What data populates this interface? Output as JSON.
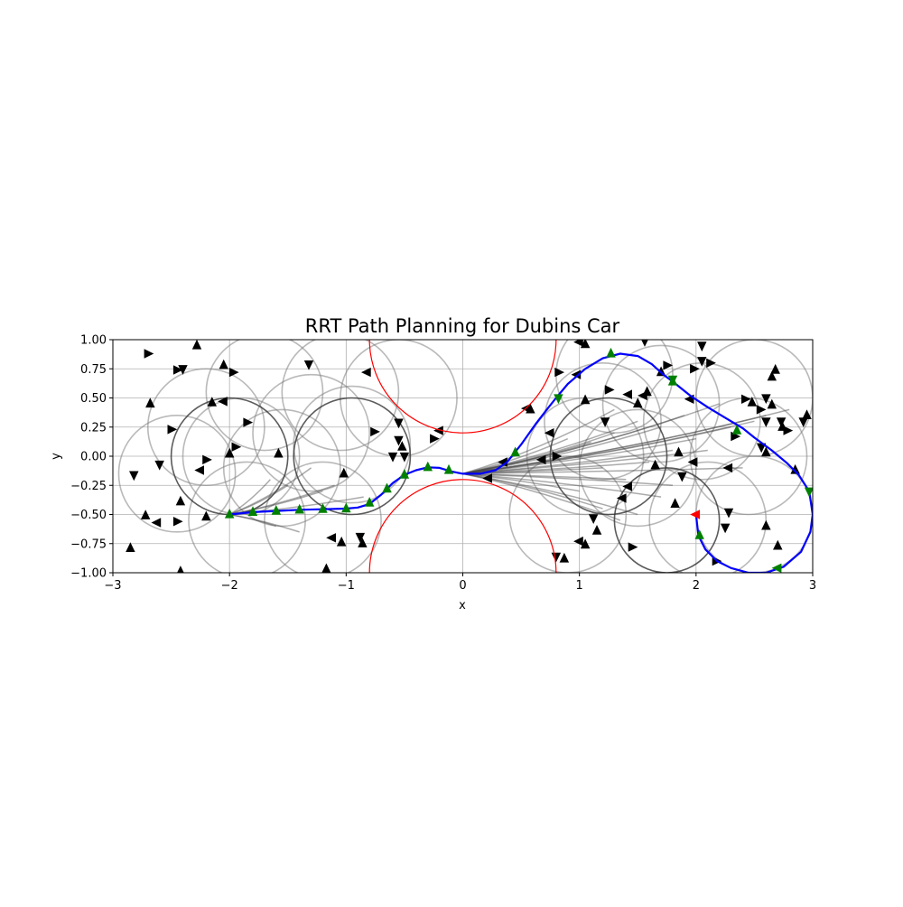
{
  "chart_data": {
    "type": "line",
    "title": "RRT Path Planning for Dubins Car",
    "xlabel": "x",
    "ylabel": "y",
    "xlim": [
      -3,
      3
    ],
    "ylim": [
      -1,
      1
    ],
    "grid": true,
    "xticks": [
      -3,
      -2,
      -1,
      0,
      1,
      2,
      3
    ],
    "xtick_labels": [
      "−3",
      "−2",
      "−1",
      "0",
      "1",
      "2",
      "3"
    ],
    "yticks": [
      -1.0,
      -0.75,
      -0.5,
      -0.25,
      0.0,
      0.25,
      0.5,
      0.75,
      1.0
    ],
    "ytick_labels": [
      "−1.00",
      "−0.75",
      "−0.50",
      "−0.25",
      "0.00",
      "0.25",
      "0.50",
      "0.75",
      "1.00"
    ],
    "obstacles": [
      {
        "cx": 0,
        "cy": 1.0,
        "r": 0.8
      },
      {
        "cx": 0,
        "cy": -1.0,
        "r": 0.8
      }
    ],
    "colors": {
      "path": "#0000ff",
      "obstacle": "#ff0000",
      "tree_edge": "#808080",
      "tree_node": "#000000",
      "path_node": "#008000",
      "goal": "#ff0000"
    },
    "start": {
      "x": -2.0,
      "y": -0.5
    },
    "goal": {
      "x": 2.0,
      "y": -0.5,
      "heading_deg": 180
    },
    "path": [
      [
        -2.0,
        -0.5
      ],
      [
        -1.8,
        -0.48
      ],
      [
        -1.6,
        -0.47
      ],
      [
        -1.4,
        -0.46
      ],
      [
        -1.2,
        -0.455
      ],
      [
        -1.0,
        -0.45
      ],
      [
        -0.9,
        -0.44
      ],
      [
        -0.8,
        -0.41
      ],
      [
        -0.7,
        -0.33
      ],
      [
        -0.6,
        -0.23
      ],
      [
        -0.5,
        -0.16
      ],
      [
        -0.4,
        -0.12
      ],
      [
        -0.3,
        -0.095
      ],
      [
        -0.2,
        -0.1
      ],
      [
        -0.1,
        -0.13
      ],
      [
        0.0,
        -0.15
      ],
      [
        0.15,
        -0.15
      ],
      [
        0.28,
        -0.12
      ],
      [
        0.38,
        -0.05
      ],
      [
        0.5,
        0.1
      ],
      [
        0.62,
        0.27
      ],
      [
        0.72,
        0.4
      ],
      [
        0.8,
        0.5
      ],
      [
        0.9,
        0.62
      ],
      [
        1.05,
        0.75
      ],
      [
        1.2,
        0.84
      ],
      [
        1.35,
        0.88
      ],
      [
        1.5,
        0.86
      ],
      [
        1.62,
        0.79
      ],
      [
        1.72,
        0.7
      ],
      [
        1.8,
        0.64
      ],
      [
        1.95,
        0.52
      ],
      [
        2.1,
        0.42
      ],
      [
        2.25,
        0.33
      ],
      [
        2.4,
        0.24
      ],
      [
        2.5,
        0.16
      ],
      [
        2.65,
        0.05
      ],
      [
        2.78,
        -0.06
      ],
      [
        2.88,
        -0.16
      ],
      [
        2.97,
        -0.3
      ],
      [
        3.0,
        -0.5
      ],
      [
        2.98,
        -0.65
      ],
      [
        2.9,
        -0.82
      ],
      [
        2.75,
        -0.95
      ],
      [
        2.6,
        -1.0
      ],
      [
        2.45,
        -1.0
      ],
      [
        2.3,
        -0.96
      ],
      [
        2.18,
        -0.9
      ],
      [
        2.08,
        -0.8
      ],
      [
        2.02,
        -0.68
      ],
      [
        2.0,
        -0.5
      ]
    ],
    "path_markers": [
      {
        "x": -2.0,
        "y": -0.5,
        "heading_deg": 90
      },
      {
        "x": -1.8,
        "y": -0.48,
        "heading_deg": 90
      },
      {
        "x": -1.6,
        "y": -0.47,
        "heading_deg": 90
      },
      {
        "x": -1.4,
        "y": -0.46,
        "heading_deg": 90
      },
      {
        "x": -1.2,
        "y": -0.455,
        "heading_deg": 90
      },
      {
        "x": -1.0,
        "y": -0.45,
        "heading_deg": 90
      },
      {
        "x": -0.8,
        "y": -0.4,
        "heading_deg": 90
      },
      {
        "x": -0.65,
        "y": -0.28,
        "heading_deg": 90
      },
      {
        "x": -0.5,
        "y": -0.16,
        "heading_deg": 90
      },
      {
        "x": -0.3,
        "y": -0.095,
        "heading_deg": 90
      },
      {
        "x": -0.12,
        "y": -0.12,
        "heading_deg": 90
      },
      {
        "x": 0.45,
        "y": 0.03,
        "heading_deg": 90
      },
      {
        "x": 0.82,
        "y": 0.5,
        "heading_deg": -90
      },
      {
        "x": 1.27,
        "y": 0.88,
        "heading_deg": 90
      },
      {
        "x": 1.8,
        "y": 0.64,
        "heading_deg": 90
      },
      {
        "x": 1.8,
        "y": 0.66,
        "heading_deg": -90
      },
      {
        "x": 2.35,
        "y": 0.22,
        "heading_deg": 90
      },
      {
        "x": 2.97,
        "y": -0.3,
        "heading_deg": -90
      },
      {
        "x": 2.7,
        "y": -0.96,
        "heading_deg": 180
      },
      {
        "x": 2.03,
        "y": -0.68,
        "heading_deg": 90
      }
    ],
    "tree_nodes": [
      {
        "x": -2.7,
        "y": 0.88,
        "heading_deg": 0
      },
      {
        "x": -2.45,
        "y": 0.74,
        "heading_deg": 0
      },
      {
        "x": -2.4,
        "y": 0.75,
        "heading_deg": -90
      },
      {
        "x": -2.28,
        "y": 0.95,
        "heading_deg": 90
      },
      {
        "x": -2.05,
        "y": 0.78,
        "heading_deg": 90
      },
      {
        "x": -1.97,
        "y": 0.72,
        "heading_deg": 0
      },
      {
        "x": -1.32,
        "y": 0.79,
        "heading_deg": -90
      },
      {
        "x": -0.82,
        "y": 0.72,
        "heading_deg": 180
      },
      {
        "x": -2.68,
        "y": 0.45,
        "heading_deg": 90
      },
      {
        "x": -2.15,
        "y": 0.46,
        "heading_deg": 90
      },
      {
        "x": -2.05,
        "y": 0.47,
        "heading_deg": 180
      },
      {
        "x": -2.5,
        "y": 0.23,
        "heading_deg": 0
      },
      {
        "x": -1.85,
        "y": 0.29,
        "heading_deg": 0
      },
      {
        "x": -0.55,
        "y": 0.29,
        "heading_deg": -90
      },
      {
        "x": -0.2,
        "y": 0.22,
        "heading_deg": 180
      },
      {
        "x": -0.25,
        "y": 0.15,
        "heading_deg": 0
      },
      {
        "x": -0.76,
        "y": 0.21,
        "heading_deg": 0
      },
      {
        "x": -0.55,
        "y": 0.14,
        "heading_deg": -90
      },
      {
        "x": -0.52,
        "y": 0.08,
        "heading_deg": 90
      },
      {
        "x": -0.6,
        "y": 0.0,
        "heading_deg": -90
      },
      {
        "x": -0.5,
        "y": 0.0,
        "heading_deg": -90
      },
      {
        "x": -2.6,
        "y": -0.07,
        "heading_deg": -90
      },
      {
        "x": -2.82,
        "y": -0.16,
        "heading_deg": -90
      },
      {
        "x": -2.2,
        "y": -0.03,
        "heading_deg": 0
      },
      {
        "x": -2.0,
        "y": 0.02,
        "heading_deg": 90
      },
      {
        "x": -1.95,
        "y": 0.08,
        "heading_deg": 0
      },
      {
        "x": -1.58,
        "y": 0.02,
        "heading_deg": 90
      },
      {
        "x": -2.25,
        "y": -0.12,
        "heading_deg": 180
      },
      {
        "x": -1.02,
        "y": -0.15,
        "heading_deg": 90
      },
      {
        "x": -2.72,
        "y": -0.51,
        "heading_deg": 90
      },
      {
        "x": -2.62,
        "y": -0.57,
        "heading_deg": 180
      },
      {
        "x": -2.42,
        "y": -0.39,
        "heading_deg": 90
      },
      {
        "x": -2.45,
        "y": -0.56,
        "heading_deg": 0
      },
      {
        "x": -2.2,
        "y": -0.52,
        "heading_deg": 90
      },
      {
        "x": -2.85,
        "y": -0.79,
        "heading_deg": 90
      },
      {
        "x": -2.42,
        "y": -0.99,
        "heading_deg": 90
      },
      {
        "x": -1.12,
        "y": -0.7,
        "heading_deg": 180
      },
      {
        "x": -1.04,
        "y": -0.74,
        "heading_deg": 90
      },
      {
        "x": -0.88,
        "y": -0.69,
        "heading_deg": -90
      },
      {
        "x": -0.86,
        "y": -0.75,
        "heading_deg": 90
      },
      {
        "x": -1.17,
        "y": -0.97,
        "heading_deg": 90
      },
      {
        "x": 0.55,
        "y": 0.41,
        "heading_deg": 180
      },
      {
        "x": 0.58,
        "y": 0.4,
        "heading_deg": 90
      },
      {
        "x": 1.0,
        "y": 0.98,
        "heading_deg": 180
      },
      {
        "x": 1.05,
        "y": 0.96,
        "heading_deg": 90
      },
      {
        "x": 1.56,
        "y": 0.99,
        "heading_deg": -90
      },
      {
        "x": 0.82,
        "y": 0.72,
        "heading_deg": 0
      },
      {
        "x": 0.98,
        "y": 0.7,
        "heading_deg": 180
      },
      {
        "x": 1.7,
        "y": 0.72,
        "heading_deg": 90
      },
      {
        "x": 1.75,
        "y": 0.78,
        "heading_deg": 0
      },
      {
        "x": 1.98,
        "y": 0.75,
        "heading_deg": 0
      },
      {
        "x": 2.05,
        "y": 0.95,
        "heading_deg": -90
      },
      {
        "x": 2.05,
        "y": 0.82,
        "heading_deg": -90
      },
      {
        "x": 2.12,
        "y": 0.8,
        "heading_deg": 0
      },
      {
        "x": 2.68,
        "y": 0.74,
        "heading_deg": 90
      },
      {
        "x": 2.65,
        "y": 0.68,
        "heading_deg": 90
      },
      {
        "x": 1.42,
        "y": 0.53,
        "heading_deg": 180
      },
      {
        "x": 1.25,
        "y": 0.57,
        "heading_deg": 0
      },
      {
        "x": 1.58,
        "y": 0.55,
        "heading_deg": 90
      },
      {
        "x": 1.55,
        "y": 0.52,
        "heading_deg": 180
      },
      {
        "x": 1.05,
        "y": 0.48,
        "heading_deg": 90
      },
      {
        "x": 1.5,
        "y": 0.45,
        "heading_deg": 90
      },
      {
        "x": 1.95,
        "y": 0.49,
        "heading_deg": 180
      },
      {
        "x": 2.42,
        "y": 0.49,
        "heading_deg": 0
      },
      {
        "x": 2.48,
        "y": 0.46,
        "heading_deg": 90
      },
      {
        "x": 2.6,
        "y": 0.5,
        "heading_deg": -90
      },
      {
        "x": 2.65,
        "y": 0.44,
        "heading_deg": 90
      },
      {
        "x": 2.55,
        "y": 0.4,
        "heading_deg": 0
      },
      {
        "x": 2.6,
        "y": 0.3,
        "heading_deg": -90
      },
      {
        "x": 2.73,
        "y": 0.3,
        "heading_deg": -90
      },
      {
        "x": 2.74,
        "y": 0.25,
        "heading_deg": 90
      },
      {
        "x": 2.78,
        "y": 0.22,
        "heading_deg": 0
      },
      {
        "x": 2.95,
        "y": 0.35,
        "heading_deg": 90
      },
      {
        "x": 2.92,
        "y": 0.3,
        "heading_deg": -90
      },
      {
        "x": 1.22,
        "y": 0.3,
        "heading_deg": -90
      },
      {
        "x": 0.75,
        "y": 0.2,
        "heading_deg": 180
      },
      {
        "x": 0.8,
        "y": 0.0,
        "heading_deg": 0
      },
      {
        "x": 0.68,
        "y": -0.03,
        "heading_deg": 180
      },
      {
        "x": 2.33,
        "y": 0.17,
        "heading_deg": 0
      },
      {
        "x": 2.56,
        "y": 0.08,
        "heading_deg": -90
      },
      {
        "x": 2.6,
        "y": 0.03,
        "heading_deg": 90
      },
      {
        "x": 1.85,
        "y": 0.03,
        "heading_deg": 90
      },
      {
        "x": 1.98,
        "y": -0.05,
        "heading_deg": 180
      },
      {
        "x": 1.65,
        "y": -0.08,
        "heading_deg": 90
      },
      {
        "x": 2.28,
        "y": -0.1,
        "heading_deg": 180
      },
      {
        "x": 2.85,
        "y": -0.12,
        "heading_deg": 90
      },
      {
        "x": 1.88,
        "y": -0.17,
        "heading_deg": -90
      },
      {
        "x": 0.35,
        "y": -0.05,
        "heading_deg": 180
      },
      {
        "x": 0.22,
        "y": -0.19,
        "heading_deg": 180
      },
      {
        "x": 1.42,
        "y": -0.26,
        "heading_deg": 180
      },
      {
        "x": 1.37,
        "y": -0.36,
        "heading_deg": 180
      },
      {
        "x": 1.12,
        "y": -0.53,
        "heading_deg": -90
      },
      {
        "x": 1.15,
        "y": -0.64,
        "heading_deg": 90
      },
      {
        "x": 1.0,
        "y": -0.73,
        "heading_deg": 180
      },
      {
        "x": 1.05,
        "y": -0.76,
        "heading_deg": 90
      },
      {
        "x": 1.45,
        "y": -0.78,
        "heading_deg": 0
      },
      {
        "x": 0.8,
        "y": -0.86,
        "heading_deg": -90
      },
      {
        "x": 0.87,
        "y": -0.88,
        "heading_deg": 90
      },
      {
        "x": 2.28,
        "y": -0.48,
        "heading_deg": -90
      },
      {
        "x": 2.25,
        "y": -0.61,
        "heading_deg": -90
      },
      {
        "x": 2.6,
        "y": -0.6,
        "heading_deg": 90
      },
      {
        "x": 2.7,
        "y": -0.77,
        "heading_deg": 90
      },
      {
        "x": 2.17,
        "y": -0.9,
        "heading_deg": 0
      },
      {
        "x": 1.82,
        "y": -0.41,
        "heading_deg": 90
      }
    ],
    "tree_circles": [
      {
        "cx": -1.9,
        "cy": 0.0,
        "r": 0.5
      },
      {
        "cx": -1.55,
        "cy": -0.1,
        "r": 0.5
      },
      {
        "cx": -1.3,
        "cy": 0.2,
        "r": 0.5
      },
      {
        "cx": -0.95,
        "cy": 0.1,
        "r": 0.5
      },
      {
        "cx": -2.2,
        "cy": 0.25,
        "r": 0.5
      },
      {
        "cx": -2.45,
        "cy": -0.15,
        "r": 0.5
      },
      {
        "cx": -1.7,
        "cy": 0.55,
        "r": 0.5
      },
      {
        "cx": -1.05,
        "cy": 0.55,
        "r": 0.5
      },
      {
        "cx": -1.2,
        "cy": -0.55,
        "r": 0.5
      },
      {
        "cx": -1.85,
        "cy": -0.55,
        "r": 0.5
      },
      {
        "cx": -0.55,
        "cy": 0.5,
        "r": 0.5
      },
      {
        "cx": 1.2,
        "cy": 0.3,
        "r": 0.5
      },
      {
        "cx": 1.05,
        "cy": 0.0,
        "r": 0.5
      },
      {
        "cx": 1.5,
        "cy": -0.1,
        "r": 0.5
      },
      {
        "cx": 1.7,
        "cy": 0.45,
        "r": 0.5
      },
      {
        "cx": 2.05,
        "cy": 0.3,
        "r": 0.5
      },
      {
        "cx": 2.1,
        "cy": -0.55,
        "r": 0.5
      },
      {
        "cx": 2.45,
        "cy": 0.0,
        "r": 0.5
      },
      {
        "cx": 1.3,
        "cy": 0.7,
        "r": 0.5
      },
      {
        "cx": 0.9,
        "cy": -0.5,
        "r": 0.5
      },
      {
        "cx": 2.5,
        "cy": 0.5,
        "r": 0.5
      },
      {
        "cx": 2.5,
        "cy": -0.5,
        "r": 0.5
      }
    ],
    "tree_circles_dark": [
      {
        "cx": -2.0,
        "cy": 0.0,
        "r": 0.5
      },
      {
        "cx": -0.95,
        "cy": 0.0,
        "r": 0.5
      },
      {
        "cx": 1.25,
        "cy": 0.0,
        "r": 0.5
      },
      {
        "cx": 1.75,
        "cy": -0.55,
        "r": 0.45
      }
    ],
    "tree_fan_from": [
      0.0,
      -0.15
    ],
    "tree_fan_to": [
      [
        1.0,
        -0.3
      ],
      [
        1.2,
        -0.45
      ],
      [
        1.35,
        -0.55
      ],
      [
        1.5,
        -0.5
      ],
      [
        1.7,
        -0.35
      ],
      [
        1.4,
        -0.2
      ],
      [
        1.6,
        -0.05
      ],
      [
        1.8,
        0.05
      ],
      [
        2.0,
        0.15
      ],
      [
        2.3,
        0.25
      ],
      [
        2.6,
        0.35
      ],
      [
        2.8,
        0.4
      ],
      [
        2.5,
        0.3
      ],
      [
        2.2,
        0.45
      ],
      [
        1.9,
        0.35
      ],
      [
        1.7,
        0.25
      ],
      [
        1.3,
        0.2
      ],
      [
        1.1,
        0.12
      ],
      [
        0.9,
        0.15
      ],
      [
        1.3,
        0.4
      ],
      [
        1.5,
        0.3
      ],
      [
        2.1,
        0.05
      ],
      [
        2.4,
        -0.1
      ],
      [
        1.8,
        -0.25
      ],
      [
        1.2,
        -0.1
      ]
    ],
    "tree_fan_left_from": [
      -2.0,
      -0.5
    ],
    "tree_fan_left_to": [
      [
        -1.5,
        -0.25
      ],
      [
        -1.3,
        -0.1
      ],
      [
        -1.1,
        -0.25
      ],
      [
        -1.6,
        -0.6
      ],
      [
        -1.4,
        -0.65
      ],
      [
        -0.85,
        -0.35
      ],
      [
        -1.2,
        -0.3
      ],
      [
        -1.65,
        -0.2
      ]
    ]
  }
}
